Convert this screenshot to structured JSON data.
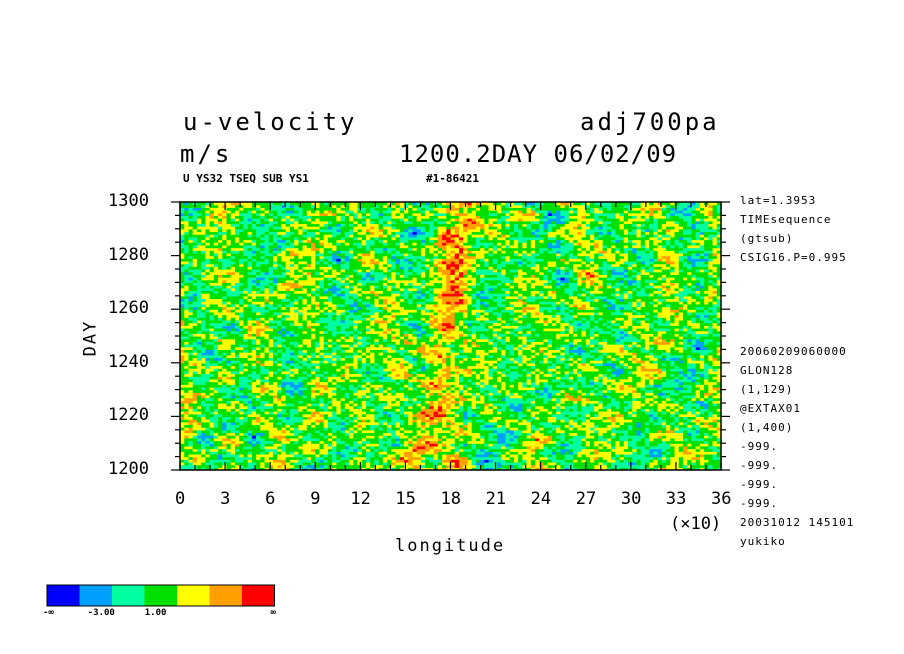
{
  "header": {
    "variable": "u-velocity",
    "experiment": "adj700pa",
    "units": "m/s",
    "time_info": "1200.2DAY 06/02/09",
    "subtitle_left": "U YS32 TSEQ SUB YS1",
    "subtitle_right": "#1-86421"
  },
  "side_info": {
    "top": [
      "lat=1.3953",
      "TIMEsequence",
      "(gtsub)",
      "CSIG16.P=0.995"
    ],
    "bottom": [
      "20060209060000",
      "GLON128",
      "(1,129)",
      "@EXTAX01",
      "(1,400)",
      "-999.",
      "-999.",
      "-999.",
      "-999.",
      "20031012 145101",
      "yukiko"
    ]
  },
  "chart_data": {
    "type": "heatmap",
    "title": "u-velocity",
    "xlabel": "longitude",
    "ylabel": "DAY",
    "x_multiplier_label": "(×10)",
    "xlim": [
      0,
      36
    ],
    "ylim": [
      1200,
      1300
    ],
    "x_ticks": [
      "0",
      "3",
      "6",
      "9",
      "12",
      "15",
      "18",
      "21",
      "24",
      "27",
      "30",
      "33",
      "36"
    ],
    "y_ticks": [
      "1200",
      "1220",
      "1240",
      "1260",
      "1280",
      "1300"
    ],
    "colorbar": {
      "colors": [
        "#0000ff",
        "#00a0ff",
        "#00ffa0",
        "#00e000",
        "#ffff00",
        "#ffa000",
        "#ff0000"
      ],
      "labels": [
        "-∞",
        "-3.00",
        "1.00",
        "∞"
      ]
    },
    "description": "noisy u-velocity field, band of strong positive (red) values drifting near longitude 150-180 with eastward streaks"
  }
}
